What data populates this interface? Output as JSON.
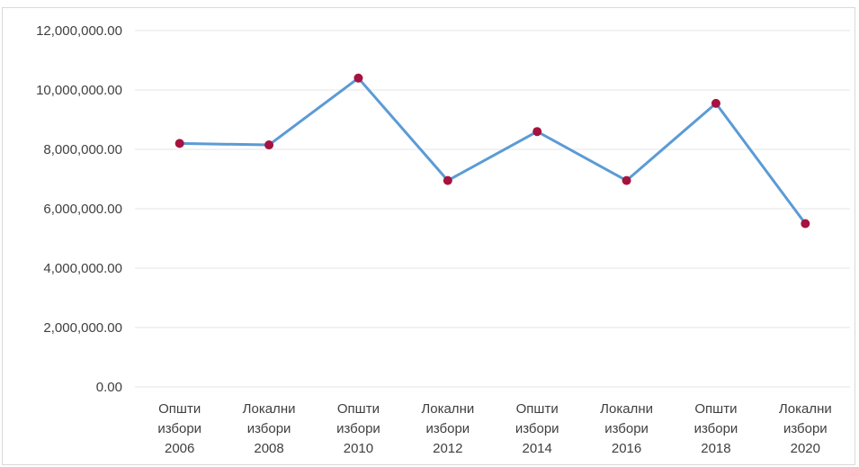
{
  "chart_data": {
    "type": "line",
    "title": "",
    "xlabel": "",
    "ylabel": "",
    "categories": [
      [
        "Општи",
        "избори",
        "2006"
      ],
      [
        "Локални",
        "избори",
        "2008"
      ],
      [
        "Општи",
        "избори",
        "2010"
      ],
      [
        "Локални",
        "избори",
        "2012"
      ],
      [
        "Општи",
        "избори",
        "2014"
      ],
      [
        "Локални",
        "избори",
        "2016"
      ],
      [
        "Општи",
        "избори",
        "2018"
      ],
      [
        "Локални",
        "избори",
        "2020"
      ]
    ],
    "series": [
      {
        "values": [
          8200000,
          8150000,
          10400000,
          6950000,
          8600000,
          6950000,
          9550000,
          5500000
        ],
        "line_color": "#5b9bd5",
        "marker_color": "#a5133f"
      }
    ],
    "ylim": [
      0,
      12000000
    ],
    "yticks": [
      0,
      2000000,
      4000000,
      6000000,
      8000000,
      10000000,
      12000000
    ],
    "ytick_labels": [
      "0.00",
      "2,000,000.00",
      "4,000,000.00",
      "6,000,000.00",
      "8,000,000.00",
      "10,000,000.00",
      "12,000,000.00"
    ],
    "grid": true,
    "legend": "none",
    "gridline_color": "#e6e6e6"
  }
}
